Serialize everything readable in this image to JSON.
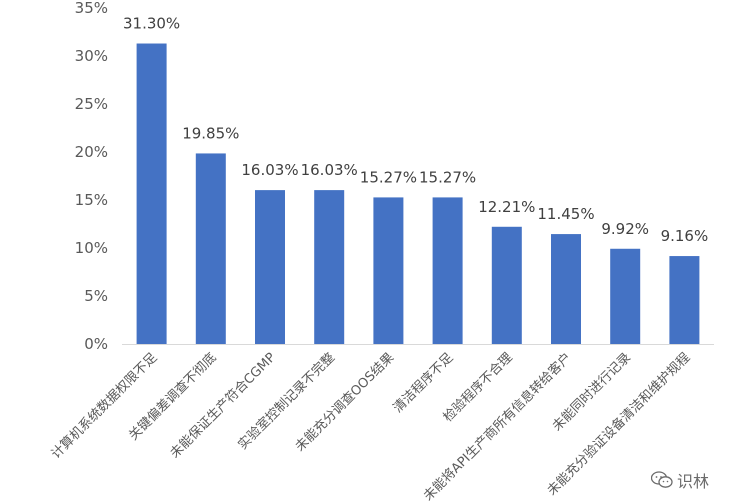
{
  "chart_data": {
    "type": "bar",
    "categories": [
      "计算机系统数据权限不足",
      "关键偏差调查不彻底",
      "未能保证生产符合CGMP",
      "实验室控制记录不完整",
      "未能充分调查OOS结果",
      "清洁程序不足",
      "检验程序不合理",
      "未能将API生产商所有信息转给客户",
      "未能同时进行记录",
      "未能充分验证设备清洁和维护规程"
    ],
    "values": [
      31.3,
      19.85,
      16.03,
      16.03,
      15.27,
      15.27,
      12.21,
      11.45,
      9.92,
      9.16
    ],
    "data_labels": [
      "31.30%",
      "19.85%",
      "16.03%",
      "16.03%",
      "15.27%",
      "15.27%",
      "12.21%",
      "11.45%",
      "9.92%",
      "9.16%"
    ],
    "yticks": [
      "0%",
      "5%",
      "10%",
      "15%",
      "20%",
      "25%",
      "30%",
      "35%"
    ],
    "ylim": [
      0,
      35
    ],
    "grid": false,
    "bar_color": "#4472C4",
    "axis_color": "#d9d9d9"
  },
  "watermark": {
    "icon": "wechat-icon",
    "text": "识林"
  }
}
